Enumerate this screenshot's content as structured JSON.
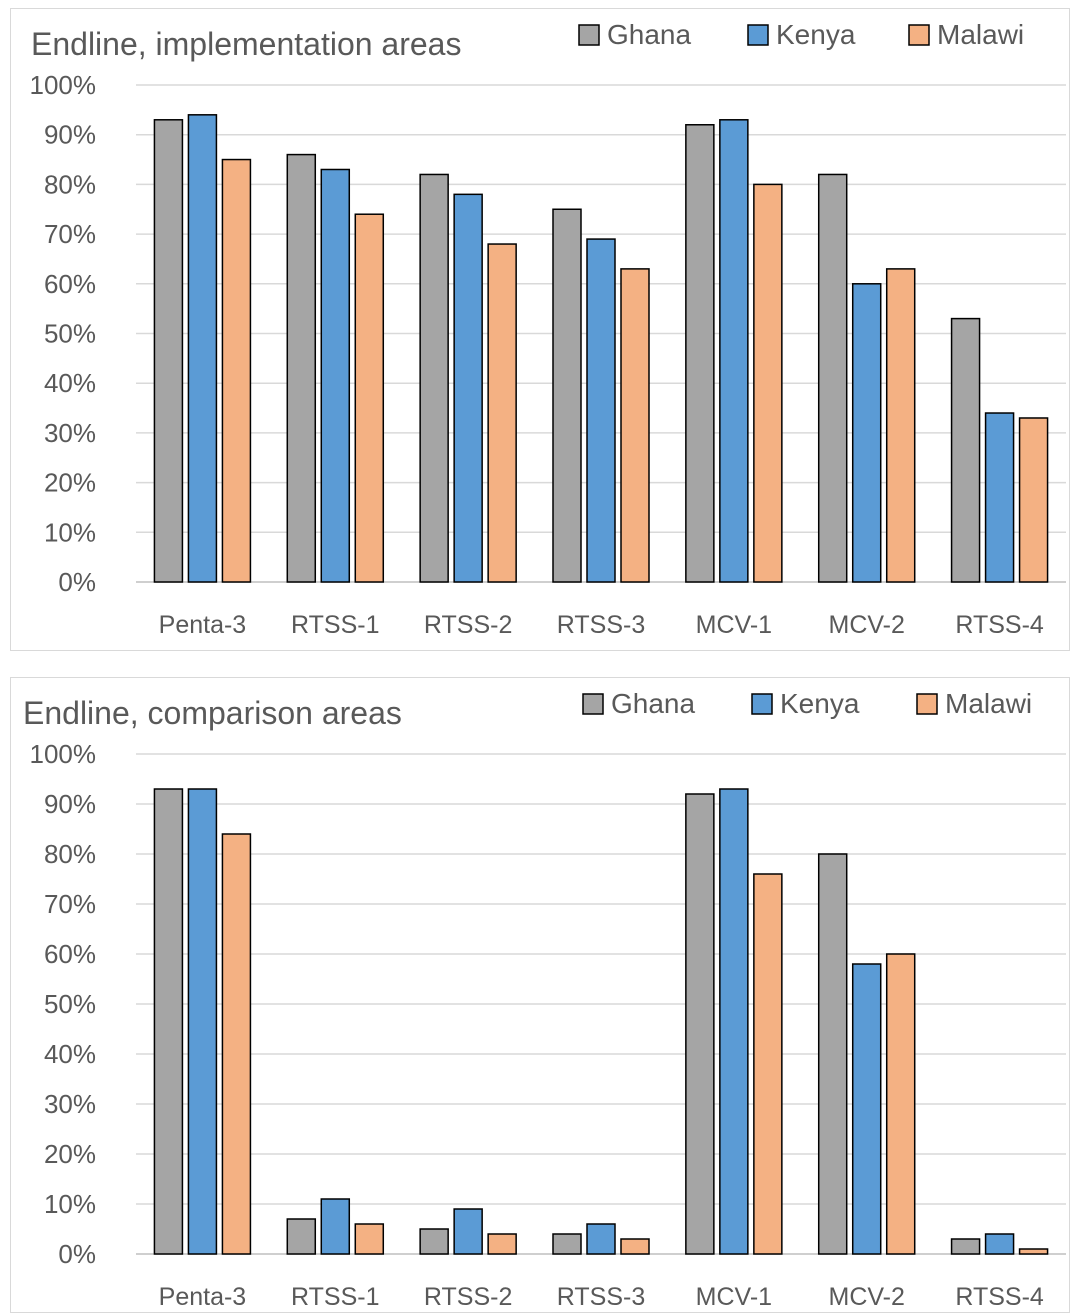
{
  "chart_data": [
    {
      "type": "bar",
      "title": "Endline, implementation areas",
      "categories": [
        "Penta-3",
        "RTSS-1",
        "RTSS-2",
        "RTSS-3",
        "MCV-1",
        "MCV-2",
        "RTSS-4"
      ],
      "series": [
        {
          "name": "Ghana",
          "color": "#a5a5a5",
          "values": [
            93,
            86,
            82,
            75,
            92,
            82,
            53
          ]
        },
        {
          "name": "Kenya",
          "color": "#5b9bd5",
          "values": [
            94,
            83,
            78,
            69,
            93,
            60,
            34
          ]
        },
        {
          "name": "Malawi",
          "color": "#f4b183",
          "values": [
            85,
            74,
            68,
            63,
            80,
            63,
            33
          ]
        }
      ],
      "yticks": [
        "0%",
        "10%",
        "20%",
        "30%",
        "40%",
        "50%",
        "60%",
        "70%",
        "80%",
        "90%",
        "100%"
      ],
      "ylim": [
        0,
        100
      ],
      "grid": true,
      "legend": "top-right"
    },
    {
      "type": "bar",
      "title": "Endline, comparison areas",
      "categories": [
        "Penta-3",
        "RTSS-1",
        "RTSS-2",
        "RTSS-3",
        "MCV-1",
        "MCV-2",
        "RTSS-4"
      ],
      "series": [
        {
          "name": "Ghana",
          "color": "#a5a5a5",
          "values": [
            93,
            7,
            5,
            4,
            92,
            80,
            3
          ]
        },
        {
          "name": "Kenya",
          "color": "#5b9bd5",
          "values": [
            93,
            11,
            9,
            6,
            93,
            58,
            4
          ]
        },
        {
          "name": "Malawi",
          "color": "#f4b183",
          "values": [
            84,
            6,
            4,
            3,
            76,
            60,
            1
          ]
        }
      ],
      "yticks": [
        "0%",
        "10%",
        "20%",
        "30%",
        "40%",
        "50%",
        "60%",
        "70%",
        "80%",
        "90%",
        "100%"
      ],
      "ylim": [
        0,
        100
      ],
      "grid": true,
      "legend": "top-right"
    }
  ]
}
